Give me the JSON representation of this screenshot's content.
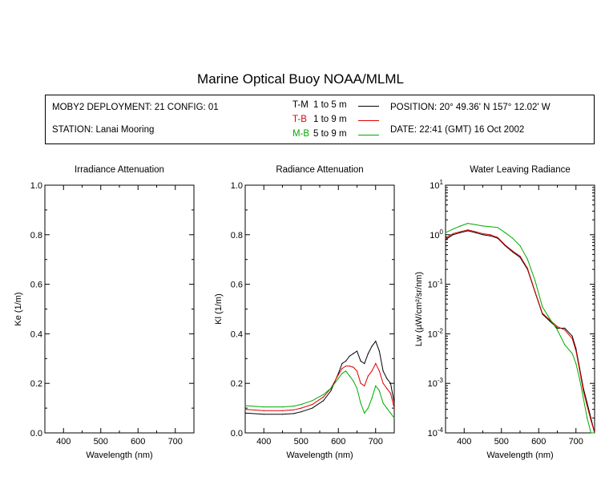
{
  "title": "Marine Optical Buoy NOAA/MLML",
  "info": {
    "deployment": "MOBY2 DEPLOYMENT: 21 CONFIG: 01",
    "station": "STATION: Lanai Mooring",
    "position": "POSITION: 20° 49.36' N   157° 12.02' W",
    "date": "DATE: 22:41 (GMT) 16 Oct 2002"
  },
  "legend": [
    {
      "code": "T-M",
      "range": "1 to 5  m",
      "color": "#000000"
    },
    {
      "code": "T-B",
      "range": "1 to 9  m",
      "color": "#dd0000"
    },
    {
      "code": "M-B",
      "range": "5 to 9  m",
      "color": "#00aa00"
    }
  ],
  "chart_data": [
    {
      "type": "line",
      "title": "Irradiance Attenuation",
      "xlabel": "Wavelength (nm)",
      "ylabel": "Ke  (1/m)",
      "xlim": [
        350,
        750
      ],
      "ylim": [
        0,
        1
      ],
      "xticks": [
        400,
        500,
        600,
        700
      ],
      "yticks": [
        "0.0",
        "0.2",
        "0.4",
        "0.6",
        "0.8",
        "1.0"
      ],
      "series": []
    },
    {
      "type": "line",
      "title": "Radiance Attenuation",
      "xlabel": "Wavelength (nm)",
      "ylabel": "Kl  (1/m)",
      "xlim": [
        350,
        750
      ],
      "ylim": [
        0,
        1
      ],
      "xticks": [
        400,
        500,
        600,
        700
      ],
      "yticks": [
        "0.0",
        "0.2",
        "0.4",
        "0.6",
        "0.8",
        "1.0"
      ],
      "series": [
        {
          "name": "T-M",
          "color": "#000000",
          "x": [
            350,
            400,
            450,
            480,
            500,
            530,
            560,
            580,
            600,
            610,
            620,
            630,
            640,
            650,
            660,
            670,
            680,
            690,
            700,
            710,
            720,
            730,
            740,
            750
          ],
          "y": [
            0.08,
            0.075,
            0.075,
            0.078,
            0.085,
            0.1,
            0.13,
            0.17,
            0.24,
            0.28,
            0.29,
            0.31,
            0.32,
            0.33,
            0.29,
            0.28,
            0.32,
            0.35,
            0.37,
            0.33,
            0.25,
            0.22,
            0.2,
            0.12
          ]
        },
        {
          "name": "T-B",
          "color": "#dd0000",
          "x": [
            350,
            400,
            450,
            480,
            500,
            530,
            560,
            580,
            600,
            610,
            620,
            630,
            640,
            650,
            660,
            670,
            680,
            690,
            700,
            710,
            720,
            730,
            740,
            750
          ],
          "y": [
            0.095,
            0.09,
            0.09,
            0.093,
            0.1,
            0.115,
            0.145,
            0.18,
            0.235,
            0.26,
            0.27,
            0.27,
            0.265,
            0.25,
            0.2,
            0.19,
            0.23,
            0.25,
            0.28,
            0.25,
            0.2,
            0.18,
            0.16,
            0.1
          ]
        },
        {
          "name": "M-B",
          "color": "#00aa00",
          "x": [
            350,
            400,
            450,
            480,
            500,
            530,
            560,
            580,
            600,
            610,
            620,
            630,
            640,
            650,
            660,
            670,
            680,
            690,
            700,
            710,
            720,
            730,
            740,
            750
          ],
          "y": [
            0.11,
            0.105,
            0.105,
            0.108,
            0.115,
            0.13,
            0.155,
            0.18,
            0.22,
            0.24,
            0.25,
            0.23,
            0.21,
            0.18,
            0.12,
            0.08,
            0.1,
            0.14,
            0.19,
            0.17,
            0.12,
            0.1,
            0.08,
            0.06
          ]
        }
      ]
    },
    {
      "type": "line",
      "title": "Water Leaving Radiance",
      "xlabel": "Wavelength (nm)",
      "ylabel": "Lw  (µW/cm²/sr/nm)",
      "xlim": [
        350,
        750
      ],
      "ylim": [
        0.0001,
        10
      ],
      "yscale": "log",
      "xticks": [
        400,
        500,
        600,
        700
      ],
      "yticks": [
        {
          "base": "10",
          "exp": "1"
        },
        {
          "base": "10",
          "exp": "0"
        },
        {
          "base": "10",
          "exp": "-1"
        },
        {
          "base": "10",
          "exp": "-2"
        },
        {
          "base": "10",
          "exp": "-3"
        },
        {
          "base": "10",
          "exp": "-4"
        }
      ],
      "series": [
        {
          "name": "T-M",
          "color": "#000000",
          "x": [
            350,
            370,
            390,
            410,
            430,
            450,
            470,
            490,
            510,
            530,
            550,
            570,
            590,
            610,
            630,
            650,
            670,
            690,
            700,
            710,
            720,
            730,
            740,
            750
          ],
          "y": [
            0.8,
            1.0,
            1.1,
            1.2,
            1.1,
            1.0,
            0.95,
            0.85,
            0.6,
            0.45,
            0.35,
            0.2,
            0.07,
            0.025,
            0.018,
            0.013,
            0.013,
            0.009,
            0.005,
            0.002,
            0.0008,
            0.0004,
            0.0002,
            0.0001
          ]
        },
        {
          "name": "T-B",
          "color": "#dd0000",
          "x": [
            350,
            370,
            390,
            410,
            430,
            450,
            470,
            490,
            510,
            530,
            550,
            570,
            590,
            610,
            630,
            650,
            670,
            690,
            700,
            710,
            720,
            730,
            740,
            750
          ],
          "y": [
            0.85,
            1.05,
            1.15,
            1.25,
            1.15,
            1.05,
            1.0,
            0.88,
            0.62,
            0.47,
            0.37,
            0.21,
            0.072,
            0.026,
            0.019,
            0.014,
            0.012,
            0.008,
            0.0045,
            0.0018,
            0.0007,
            0.00035,
            0.00018,
            0.0001
          ]
        },
        {
          "name": "M-B",
          "color": "#00aa00",
          "x": [
            350,
            370,
            390,
            410,
            430,
            450,
            470,
            490,
            510,
            530,
            550,
            570,
            590,
            610,
            630,
            650,
            670,
            690,
            700,
            710,
            720,
            730,
            740,
            750
          ],
          "y": [
            1.1,
            1.3,
            1.5,
            1.7,
            1.6,
            1.5,
            1.45,
            1.4,
            1.1,
            0.85,
            0.6,
            0.32,
            0.12,
            0.035,
            0.02,
            0.012,
            0.006,
            0.004,
            0.0025,
            0.0012,
            0.0005,
            0.0002,
            0.0001,
            0.0001
          ]
        }
      ]
    }
  ]
}
